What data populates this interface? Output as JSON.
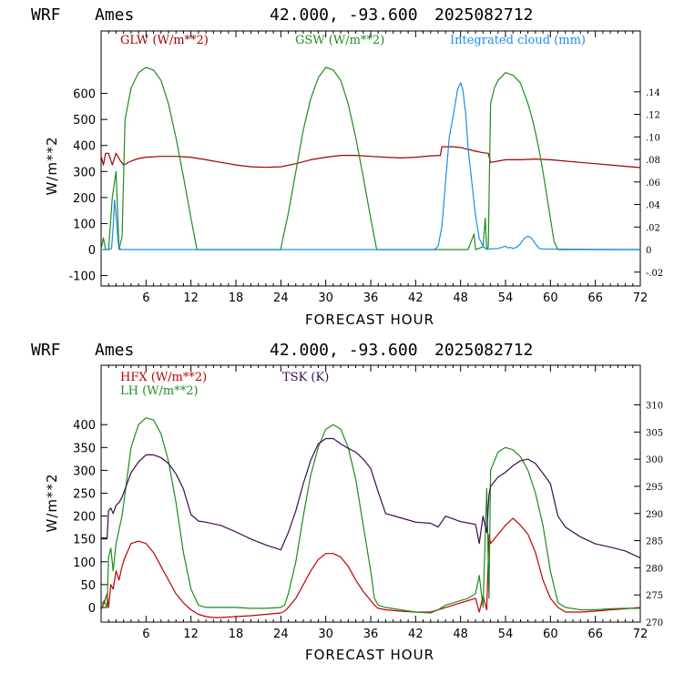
{
  "charts": [
    {
      "header": {
        "model": "WRF",
        "site": "Ames",
        "coords": "42.000, -93.600",
        "run": "2025082712"
      },
      "ylabel": "W/m**2",
      "xlabel": "FORECAST HOUR",
      "legend": [
        {
          "label": "GLW (W/m**2)",
          "color": "#a00000"
        },
        {
          "label": "GSW (W/m**2)",
          "color": "#1e8c1e"
        },
        {
          "label": "Integrated cloud (mm)",
          "color": "#1e8ce6"
        }
      ]
    },
    {
      "header": {
        "model": "WRF",
        "site": "Ames",
        "coords": "42.000, -93.600",
        "run": "2025082712"
      },
      "ylabel": "W/m**2",
      "xlabel": "FORECAST HOUR",
      "legend": [
        {
          "label": "HFX (W/m**2)",
          "color": "#c00000"
        },
        {
          "label": "LH  (W/m**2)",
          "color": "#1e8c1e"
        },
        {
          "label": "TSK (K)",
          "color": "#3c0a50"
        }
      ]
    }
  ],
  "chart_data": [
    {
      "type": "line",
      "x_ticks": [
        6,
        12,
        18,
        24,
        30,
        36,
        42,
        48,
        54,
        60,
        66,
        72
      ],
      "xlim": [
        0,
        72
      ],
      "ylim": [
        -140,
        840
      ],
      "y_ticks": [
        -100,
        0,
        100,
        200,
        300,
        400,
        500,
        600
      ],
      "y2lim": [
        -0.0323,
        0.194
      ],
      "y2_ticks": [
        -0.02,
        0,
        0.02,
        0.04,
        0.06,
        0.08,
        0.1,
        0.12,
        0.14
      ],
      "y2_tick_labels": [
        "-.02",
        "0",
        ".02",
        ".04",
        ".06",
        ".08",
        ".10",
        ".12",
        ".14"
      ],
      "series": [
        {
          "name": "GLW (W/m**2)",
          "axis": "left",
          "color": "#a00000",
          "x": [
            0,
            0.3,
            0.6,
            1,
            1.5,
            2,
            2.6,
            3,
            4,
            5,
            6,
            8,
            10,
            12,
            14,
            16,
            18,
            20,
            22,
            24,
            26,
            28,
            30,
            32,
            34,
            36,
            38,
            40,
            42,
            44,
            45.3,
            45.5,
            47,
            48,
            49,
            50,
            51,
            51.7,
            52,
            53,
            54,
            56,
            58,
            60,
            62,
            64,
            66,
            68,
            70,
            72
          ],
          "y": [
            360,
            325,
            370,
            370,
            325,
            370,
            340,
            325,
            340,
            350,
            355,
            358,
            358,
            355,
            345,
            335,
            325,
            318,
            316,
            318,
            330,
            345,
            355,
            362,
            362,
            358,
            355,
            352,
            355,
            360,
            362,
            395,
            395,
            392,
            385,
            378,
            372,
            370,
            335,
            340,
            345,
            345,
            348,
            345,
            340,
            335,
            330,
            325,
            320,
            315
          ]
        },
        {
          "name": "GSW (W/m**2)",
          "axis": "left",
          "color": "#1e8c1e",
          "x": [
            0,
            0.3,
            0.6,
            1,
            1.5,
            2,
            2.4,
            2.8,
            3.2,
            4,
            5,
            6,
            7,
            8,
            9,
            10,
            11,
            12,
            12.8,
            13,
            24,
            24.1,
            25,
            26,
            27,
            28,
            29,
            30,
            31,
            32,
            33,
            34,
            35,
            36,
            36.8,
            37,
            48,
            49,
            49.8,
            50,
            51,
            51.3,
            51.5,
            51.7,
            52,
            52.5,
            53,
            54,
            55,
            56,
            57,
            57.5,
            58,
            58.5,
            59,
            60,
            60.5,
            61,
            72
          ],
          "y": [
            0,
            45,
            0,
            0,
            200,
            300,
            0,
            50,
            500,
            620,
            680,
            700,
            690,
            650,
            560,
            430,
            280,
            120,
            0,
            0,
            0,
            20,
            140,
            300,
            460,
            580,
            660,
            700,
            690,
            650,
            560,
            430,
            280,
            120,
            0,
            0,
            0,
            0,
            60,
            0,
            10,
            120,
            0,
            10,
            560,
            620,
            650,
            680,
            670,
            640,
            560,
            510,
            450,
            380,
            300,
            120,
            30,
            0,
            0
          ]
        },
        {
          "name": "Integrated cloud (mm)",
          "axis": "right",
          "color": "#1e8ce6",
          "x": [
            0,
            1,
            1.4,
            1.6,
            1.8,
            2.0,
            2.3,
            2.6,
            3,
            44.5,
            45,
            45.5,
            46,
            46.5,
            47,
            47.3,
            47.6,
            48,
            48.3,
            48.7,
            49,
            49.5,
            50,
            50.5,
            51,
            51.4,
            52,
            53,
            53.5,
            54,
            54.3,
            54.7,
            55,
            55.5,
            56,
            56.5,
            57,
            57.5,
            58,
            58.5,
            59,
            72
          ],
          "y": [
            0,
            0,
            0.001,
            0.02,
            0.044,
            0.03,
            0.005,
            0,
            0,
            0,
            0.003,
            0.02,
            0.06,
            0.1,
            0.118,
            0.13,
            0.142,
            0.148,
            0.142,
            0.12,
            0.09,
            0.06,
            0.03,
            0.01,
            0.003,
            0.0005,
            0.0005,
            0.001,
            0.002,
            0.003,
            0.0015,
            0.002,
            0.001,
            0.002,
            0.005,
            0.01,
            0.012,
            0.01,
            0.005,
            0.001,
            0.0005,
            0
          ]
        }
      ]
    },
    {
      "type": "line",
      "x_ticks": [
        6,
        12,
        18,
        24,
        30,
        36,
        42,
        48,
        54,
        60,
        66,
        72
      ],
      "xlim": [
        0,
        72
      ],
      "ylim": [
        -32,
        530
      ],
      "y_ticks": [
        0,
        50,
        100,
        150,
        200,
        250,
        300,
        350,
        400
      ],
      "y2lim": [
        270,
        317.3
      ],
      "y2_ticks": [
        270,
        275,
        280,
        285,
        290,
        295,
        300,
        305,
        310
      ],
      "y2_tick_labels": [
        "270",
        "275",
        "280",
        "285",
        "290",
        "295",
        "300",
        "305",
        "310"
      ],
      "series": [
        {
          "name": "HFX (W/m**2)",
          "axis": "left",
          "color": "#c00000",
          "x": [
            0,
            0.4,
            0.8,
            1.0,
            1.3,
            1.6,
            2.0,
            2.4,
            2.8,
            3.2,
            4,
            5,
            6,
            7,
            8,
            9,
            10,
            11,
            12,
            13,
            14,
            15,
            16,
            18,
            20,
            22,
            24,
            24.5,
            25,
            26,
            27,
            28,
            29,
            30,
            31,
            32,
            33,
            34,
            35,
            36,
            36.5,
            37,
            38,
            40,
            42,
            44,
            45,
            46,
            47,
            48,
            49,
            50,
            50.5,
            51,
            51.5,
            51.8,
            52,
            53,
            54,
            55,
            56,
            57,
            58,
            59,
            60,
            61,
            62,
            64,
            66,
            68,
            70,
            72
          ],
          "y": [
            -5,
            10,
            30,
            0,
            50,
            40,
            80,
            60,
            90,
            110,
            140,
            145,
            140,
            120,
            90,
            60,
            30,
            10,
            -5,
            -15,
            -20,
            -22,
            -22,
            -20,
            -18,
            -15,
            -12,
            -8,
            0,
            20,
            50,
            80,
            105,
            118,
            118,
            110,
            90,
            60,
            35,
            15,
            5,
            -2,
            -5,
            -8,
            -10,
            -10,
            -5,
            0,
            5,
            10,
            15,
            20,
            -10,
            25,
            -5,
            160,
            140,
            160,
            180,
            195,
            180,
            160,
            120,
            60,
            20,
            0,
            -10,
            -10,
            -8,
            -5,
            -3,
            0
          ]
        },
        {
          "name": "LH  (W/m**2)",
          "axis": "left",
          "color": "#1e8c1e",
          "x": [
            0,
            0.4,
            0.8,
            1.0,
            1.3,
            1.6,
            2.0,
            2.4,
            2.8,
            3.2,
            4,
            5,
            6,
            7,
            8,
            9,
            10,
            11,
            12,
            13,
            14,
            16,
            18,
            20,
            22,
            24,
            24.5,
            25,
            26,
            27,
            28,
            29,
            30,
            31,
            32,
            33,
            34,
            35,
            36,
            36.5,
            37,
            38,
            40,
            42,
            44,
            45,
            46,
            47,
            48,
            49,
            50,
            50.5,
            51,
            51.5,
            51.8,
            52,
            52.5,
            53,
            54,
            55,
            56,
            57,
            58,
            59,
            60,
            61,
            62,
            64,
            66,
            68,
            70,
            72
          ],
          "y": [
            5,
            15,
            0,
            110,
            130,
            80,
            140,
            170,
            200,
            250,
            350,
            400,
            415,
            410,
            380,
            320,
            230,
            120,
            40,
            5,
            0,
            0,
            0,
            -2,
            -2,
            0,
            5,
            30,
            100,
            200,
            290,
            350,
            390,
            400,
            390,
            350,
            280,
            180,
            80,
            20,
            5,
            0,
            -5,
            -10,
            -12,
            -5,
            5,
            10,
            15,
            20,
            30,
            70,
            0,
            260,
            20,
            300,
            320,
            340,
            350,
            345,
            330,
            300,
            250,
            180,
            80,
            10,
            0,
            -5,
            -5,
            -3,
            -2,
            -2
          ]
        },
        {
          "name": "TSK (K)",
          "axis": "right",
          "color": "#3c0a50",
          "x": [
            0,
            0.5,
            0.8,
            1.0,
            1.3,
            1.6,
            2.0,
            2.4,
            2.8,
            3.2,
            4,
            5,
            6,
            7,
            8,
            9,
            10,
            11,
            12,
            13,
            14,
            16,
            18,
            20,
            22,
            24,
            25,
            26,
            27,
            28,
            29,
            30,
            31,
            32,
            33,
            34,
            35,
            36,
            37,
            38,
            40,
            42,
            44,
            45,
            46,
            48,
            50,
            50.5,
            51,
            51.5,
            51.8,
            52,
            53,
            54,
            55,
            56,
            57,
            58,
            59,
            60,
            61,
            62,
            64,
            66,
            68,
            70,
            72
          ],
          "y": [
            285.5,
            285.5,
            285.5,
            290.5,
            291,
            290,
            291.5,
            292,
            293,
            294.5,
            297.5,
            299.5,
            300.8,
            300.8,
            300.3,
            299.2,
            297.3,
            294.5,
            289.8,
            288.6,
            288.4,
            287.8,
            286.6,
            285.3,
            284.2,
            283.3,
            286.5,
            290.5,
            295.5,
            299.8,
            302.8,
            303.8,
            303.8,
            302.8,
            302,
            301.3,
            300,
            298.3,
            294,
            290,
            289.2,
            288.4,
            288.2,
            287.5,
            289.5,
            288.5,
            288,
            284.5,
            289.5,
            286.5,
            293.5,
            295,
            296.7,
            297.6,
            298.8,
            299.7,
            300,
            299.2,
            297.4,
            295.5,
            289.5,
            287.5,
            285.7,
            284.4,
            283.8,
            283.1,
            281.8
          ]
        }
      ]
    }
  ]
}
